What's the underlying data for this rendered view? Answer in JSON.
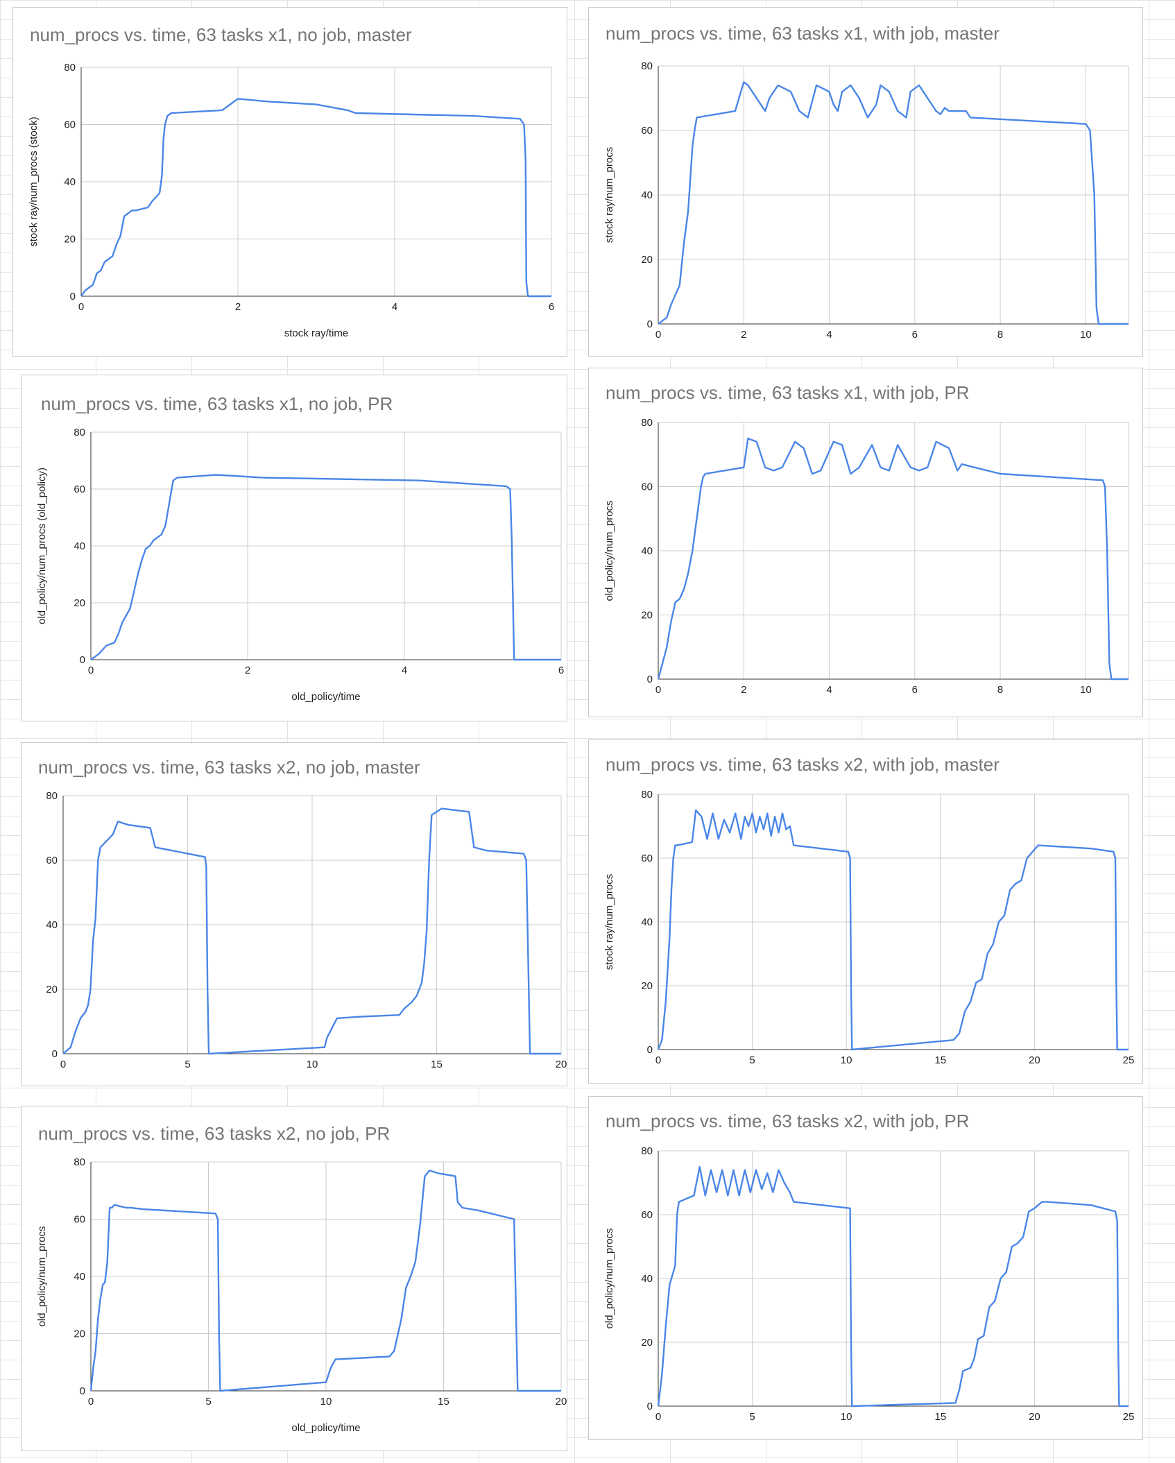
{
  "colors": {
    "line": "#4A86E8",
    "grid": "#cccccc",
    "axis": "#333333",
    "title": "#757575"
  },
  "chart_data": [
    {
      "type": "line",
      "title": "num_procs vs. time, 63 tasks x1, no job, master",
      "xlabel": "stock ray/time",
      "ylabel": "stock ray/num_procs (stock)",
      "xlim": [
        0,
        6
      ],
      "ylim": [
        0,
        80
      ],
      "xticks": [
        "0",
        "2",
        "4",
        "6"
      ],
      "yticks": [
        "0",
        "20",
        "40",
        "60",
        "80"
      ],
      "x": [
        0,
        0.05,
        0.15,
        0.2,
        0.25,
        0.3,
        0.4,
        0.45,
        0.5,
        0.55,
        0.6,
        0.65,
        0.7,
        0.85,
        0.9,
        1.0,
        1.03,
        1.05,
        1.07,
        1.1,
        1.15,
        1.8,
        2.0,
        2.4,
        3.0,
        3.4,
        3.5,
        5.0,
        5.6,
        5.65,
        5.67,
        5.68,
        5.7,
        6.0
      ],
      "series": [
        {
          "name": "num_procs",
          "values": [
            0,
            2,
            4,
            8,
            9,
            12,
            14,
            18,
            21,
            28,
            29,
            30,
            30,
            31,
            33,
            36,
            42,
            55,
            60,
            63,
            64,
            65,
            69,
            68,
            67,
            65,
            64,
            63,
            62,
            60,
            48,
            5,
            0,
            0
          ]
        }
      ]
    },
    {
      "type": "line",
      "title": "num_procs vs. time, 63 tasks x1, with job, master",
      "xlabel": "",
      "ylabel": "stock ray/num_procs",
      "xlim": [
        0,
        11
      ],
      "ylim": [
        0,
        80
      ],
      "xticks": [
        "0",
        "2",
        "4",
        "6",
        "8",
        "10"
      ],
      "yticks": [
        "0",
        "20",
        "40",
        "60",
        "80"
      ],
      "x": [
        0,
        0.2,
        0.3,
        0.5,
        0.6,
        0.7,
        0.75,
        0.8,
        0.85,
        0.9,
        1.8,
        2.0,
        2.1,
        2.4,
        2.5,
        2.6,
        2.8,
        3.1,
        3.3,
        3.5,
        3.7,
        4.0,
        4.1,
        4.2,
        4.3,
        4.5,
        4.7,
        4.9,
        5.1,
        5.2,
        5.4,
        5.6,
        5.8,
        5.9,
        6.1,
        6.3,
        6.5,
        6.6,
        6.7,
        6.8,
        7.2,
        7.3,
        10.0,
        10.1,
        10.2,
        10.25,
        10.3,
        11.0
      ],
      "series": [
        {
          "name": "num_procs",
          "values": [
            0,
            2,
            6,
            12,
            25,
            35,
            45,
            55,
            60,
            64,
            66,
            75,
            74,
            68,
            66,
            70,
            74,
            72,
            66,
            64,
            74,
            72,
            68,
            66,
            72,
            74,
            70,
            64,
            68,
            74,
            72,
            66,
            64,
            72,
            74,
            70,
            66,
            65,
            67,
            66,
            66,
            64,
            62,
            60,
            40,
            5,
            0,
            0
          ]
        }
      ]
    },
    {
      "type": "line",
      "title": "num_procs vs. time, 63 tasks x1, no job, PR",
      "xlabel": "old_policy/time",
      "ylabel": "old_policy/num_procs (old_policy)",
      "xlim": [
        0,
        6
      ],
      "ylim": [
        0,
        80
      ],
      "xticks": [
        "0",
        "2",
        "4",
        "6"
      ],
      "yticks": [
        "0",
        "20",
        "40",
        "60",
        "80"
      ],
      "x": [
        0,
        0.1,
        0.2,
        0.3,
        0.35,
        0.4,
        0.5,
        0.55,
        0.6,
        0.65,
        0.7,
        0.75,
        0.8,
        0.9,
        0.95,
        1.0,
        1.05,
        1.1,
        1.6,
        2.2,
        4.2,
        5.3,
        5.35,
        5.37,
        5.4,
        6.0
      ],
      "series": [
        {
          "name": "num_procs",
          "values": [
            0,
            2,
            5,
            6,
            9,
            13,
            18,
            24,
            30,
            35,
            39,
            40,
            42,
            44,
            47,
            55,
            63,
            64,
            65,
            64,
            63,
            61,
            60,
            42,
            0,
            0
          ]
        }
      ]
    },
    {
      "type": "line",
      "title": "num_procs vs. time, 63 tasks x1, with job, PR",
      "xlabel": "",
      "ylabel": "old_policy/num_procs",
      "xlim": [
        0,
        11
      ],
      "ylim": [
        0,
        80
      ],
      "xticks": [
        "0",
        "2",
        "4",
        "6",
        "8",
        "10"
      ],
      "yticks": [
        "0",
        "20",
        "40",
        "60",
        "80"
      ],
      "x": [
        0,
        0.1,
        0.2,
        0.3,
        0.4,
        0.5,
        0.6,
        0.7,
        0.8,
        0.9,
        1.0,
        1.05,
        1.1,
        2.0,
        2.1,
        2.3,
        2.5,
        2.7,
        2.9,
        3.2,
        3.4,
        3.6,
        3.8,
        4.1,
        4.3,
        4.5,
        4.7,
        5.0,
        5.2,
        5.4,
        5.6,
        5.9,
        6.1,
        6.3,
        6.5,
        6.8,
        7.0,
        7.1,
        7.4,
        8.0,
        10.4,
        10.45,
        10.5,
        10.55,
        10.6,
        11.0
      ],
      "series": [
        {
          "name": "num_procs",
          "values": [
            0,
            5,
            10,
            18,
            24,
            25,
            28,
            33,
            40,
            50,
            60,
            63,
            64,
            66,
            75,
            74,
            66,
            65,
            66,
            74,
            72,
            64,
            65,
            74,
            73,
            64,
            66,
            73,
            66,
            65,
            73,
            66,
            65,
            66,
            74,
            72,
            65,
            67,
            66,
            64,
            62,
            60,
            40,
            5,
            0,
            0
          ]
        }
      ]
    },
    {
      "type": "line",
      "title": "num_procs vs. time, 63 tasks x2, no job, master",
      "xlabel": "",
      "ylabel": "",
      "xlim": [
        0,
        20
      ],
      "ylim": [
        0,
        80
      ],
      "xticks": [
        "0",
        "5",
        "10",
        "15",
        "20"
      ],
      "yticks": [
        "0",
        "20",
        "40",
        "60",
        "80"
      ],
      "x": [
        0,
        0.3,
        0.5,
        0.7,
        0.9,
        1.0,
        1.1,
        1.2,
        1.3,
        1.4,
        1.5,
        2.0,
        2.2,
        2.6,
        3.5,
        3.7,
        5.7,
        5.75,
        5.8,
        5.85,
        10.5,
        10.6,
        10.8,
        11.0,
        12.0,
        13.5,
        13.7,
        14.0,
        14.2,
        14.4,
        14.5,
        14.6,
        14.7,
        14.8,
        15.0,
        15.2,
        16.3,
        16.5,
        17.0,
        18.5,
        18.6,
        18.7,
        18.75,
        20.0
      ],
      "series": [
        {
          "name": "num_procs",
          "values": [
            0,
            2,
            7,
            11,
            13,
            15,
            20,
            35,
            42,
            60,
            64,
            68,
            72,
            71,
            70,
            64,
            61,
            58,
            20,
            0,
            2,
            5,
            8,
            11,
            11.5,
            12,
            14,
            16,
            18,
            22,
            28,
            38,
            60,
            74,
            75,
            76,
            75,
            64,
            63,
            62,
            60,
            20,
            0,
            0
          ]
        }
      ]
    },
    {
      "type": "line",
      "title": "num_procs vs. time, 63 tasks x2, with job, master",
      "xlabel": "",
      "ylabel": "stock ray/num_procs",
      "xlim": [
        0,
        25
      ],
      "ylim": [
        0,
        80
      ],
      "xticks": [
        "0",
        "5",
        "10",
        "15",
        "20",
        "25"
      ],
      "yticks": [
        "0",
        "20",
        "40",
        "60",
        "80"
      ],
      "x": [
        0,
        0.2,
        0.4,
        0.6,
        0.7,
        0.8,
        0.9,
        1.0,
        1.8,
        2.0,
        2.3,
        2.6,
        2.9,
        3.2,
        3.5,
        3.8,
        4.1,
        4.4,
        4.6,
        4.8,
        5.0,
        5.2,
        5.4,
        5.6,
        5.8,
        6.0,
        6.2,
        6.4,
        6.6,
        6.8,
        7.0,
        7.2,
        10.1,
        10.2,
        10.25,
        10.3,
        15.7,
        16.0,
        16.3,
        16.6,
        16.9,
        17.2,
        17.5,
        17.8,
        18.1,
        18.4,
        18.7,
        19.0,
        19.3,
        19.6,
        19.9,
        20.2,
        23.0,
        24.2,
        24.3,
        24.35,
        24.4,
        25.0
      ],
      "series": [
        {
          "name": "num_procs",
          "values": [
            0,
            3,
            15,
            35,
            50,
            60,
            64,
            64,
            65,
            75,
            73,
            66,
            74,
            66,
            72,
            68,
            74,
            66,
            73,
            70,
            74,
            68,
            73,
            69,
            74,
            67,
            73,
            68,
            74,
            69,
            70,
            64,
            62,
            60,
            20,
            0,
            3,
            5,
            12,
            15,
            21,
            22,
            30,
            33,
            40,
            42,
            50,
            52,
            53,
            60,
            62,
            64,
            63,
            62,
            60,
            20,
            0,
            0
          ]
        }
      ]
    },
    {
      "type": "line",
      "title": "num_procs vs. time, 63 tasks x2, no job, PR",
      "xlabel": "old_policy/time",
      "ylabel": "old_policy/num_procs",
      "xlim": [
        0,
        20
      ],
      "ylim": [
        0,
        80
      ],
      "xticks": [
        "0",
        "5",
        "10",
        "15",
        "20"
      ],
      "yticks": [
        "0",
        "20",
        "40",
        "60",
        "80"
      ],
      "x": [
        0,
        0.1,
        0.2,
        0.3,
        0.4,
        0.5,
        0.6,
        0.7,
        0.8,
        0.9,
        1.0,
        1.5,
        1.7,
        2.2,
        5.3,
        5.4,
        5.45,
        5.5,
        10.0,
        10.2,
        10.4,
        12.7,
        12.9,
        13.2,
        13.4,
        13.6,
        13.8,
        14.0,
        14.2,
        14.4,
        14.8,
        15.5,
        15.6,
        15.8,
        16.5,
        18.0,
        18.1,
        18.15,
        18.2,
        20.0
      ],
      "series": [
        {
          "name": "num_procs",
          "values": [
            0,
            8,
            14,
            25,
            32,
            37,
            38,
            45,
            64,
            64,
            65,
            64,
            64,
            63.5,
            62,
            60,
            20,
            0,
            3,
            8,
            11,
            12,
            14,
            25,
            36,
            40,
            45,
            58,
            75,
            77,
            76,
            75,
            66,
            64,
            63,
            60,
            20,
            0,
            0,
            0
          ]
        }
      ]
    },
    {
      "type": "line",
      "title": "num_procs vs. time, 63 tasks x2, with job, PR",
      "xlabel": "",
      "ylabel": "old_policy/num_procs",
      "xlim": [
        0,
        25
      ],
      "ylim": [
        0,
        80
      ],
      "xticks": [
        "0",
        "5",
        "10",
        "15",
        "20",
        "25"
      ],
      "yticks": [
        "0",
        "20",
        "40",
        "60",
        "80"
      ],
      "x": [
        0,
        0.2,
        0.4,
        0.6,
        0.8,
        0.9,
        1.0,
        1.1,
        1.9,
        2.2,
        2.5,
        2.8,
        3.1,
        3.4,
        3.7,
        4.0,
        4.3,
        4.6,
        4.9,
        5.2,
        5.5,
        5.8,
        6.1,
        6.4,
        6.7,
        7.0,
        7.2,
        10.2,
        10.25,
        10.3,
        15.8,
        16.0,
        16.2,
        16.6,
        16.8,
        17.0,
        17.3,
        17.6,
        17.9,
        18.2,
        18.5,
        18.8,
        19.1,
        19.4,
        19.7,
        20.0,
        20.4,
        20.7,
        23.0,
        24.3,
        24.4,
        24.45,
        24.5,
        25.0
      ],
      "series": [
        {
          "name": "num_procs",
          "values": [
            0,
            10,
            25,
            38,
            42,
            44,
            60,
            64,
            66,
            75,
            66,
            74,
            67,
            74,
            66,
            74,
            66,
            74,
            67,
            74,
            68,
            73,
            67,
            74,
            70,
            67,
            64,
            62,
            20,
            0,
            1,
            5,
            11,
            12,
            15,
            21,
            22,
            31,
            33,
            40,
            42,
            50,
            51,
            53,
            61,
            62,
            64,
            64,
            63,
            61,
            58,
            20,
            0,
            0
          ]
        }
      ]
    }
  ]
}
